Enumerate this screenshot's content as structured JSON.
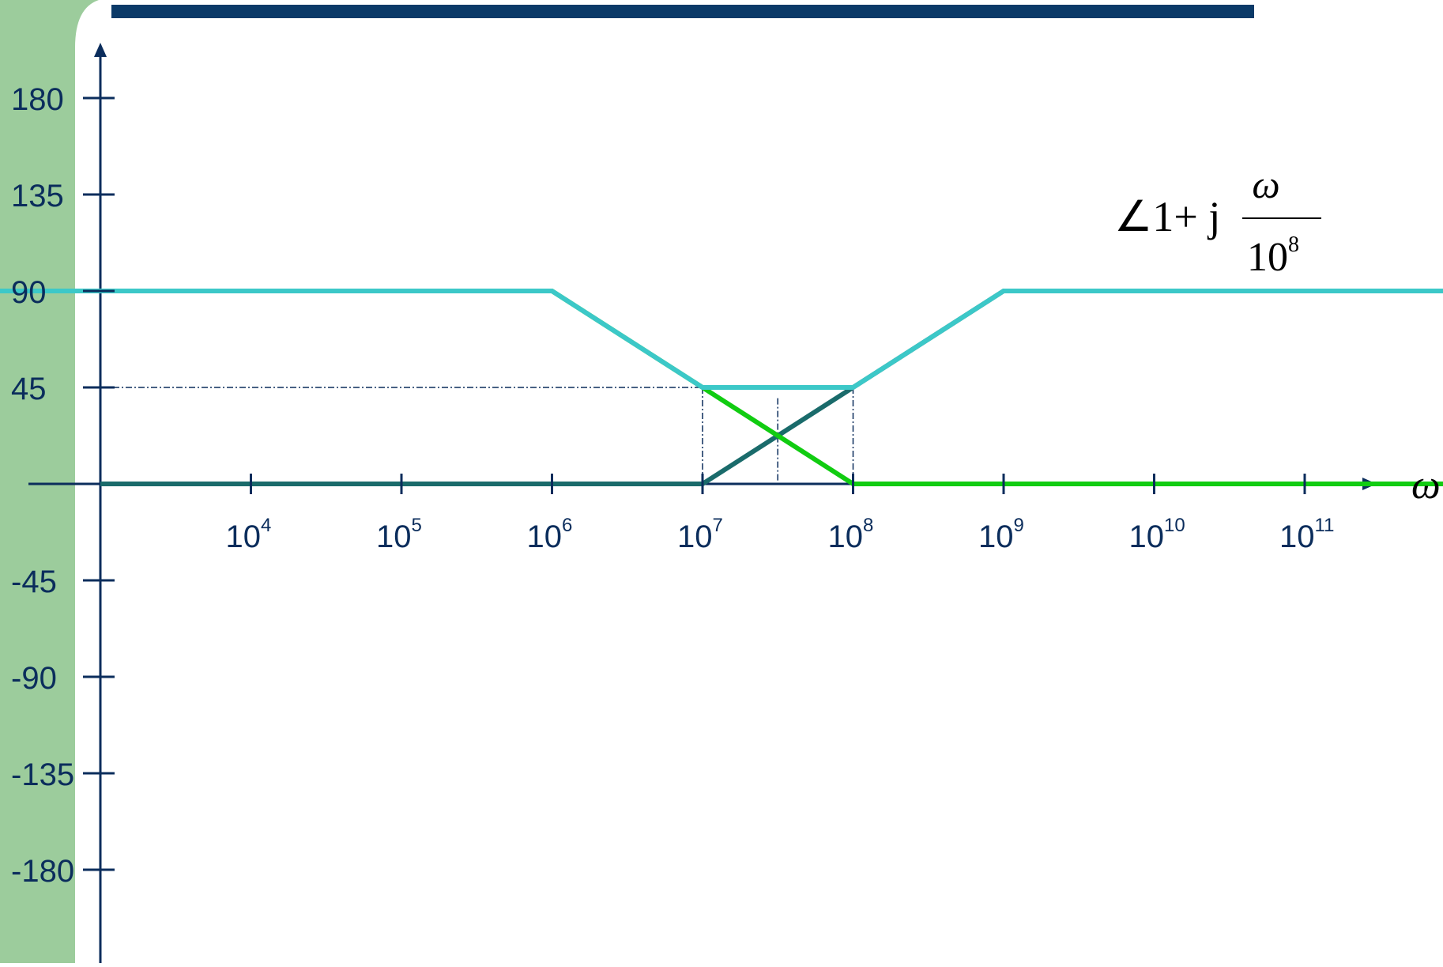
{
  "chart_data": {
    "type": "line",
    "title": "",
    "xlabel": "ω",
    "ylabel": "",
    "x_scale": "log",
    "xlim": [
      1000,
      10000000000000
    ],
    "ylim": [
      -180,
      180
    ],
    "x_ticks": [
      {
        "value": 10000,
        "base": "10",
        "exp": "4"
      },
      {
        "value": 100000,
        "base": "10",
        "exp": "5"
      },
      {
        "value": 1000000,
        "base": "10",
        "exp": "6"
      },
      {
        "value": 10000000,
        "base": "10",
        "exp": "7"
      },
      {
        "value": 100000000,
        "base": "10",
        "exp": "8"
      },
      {
        "value": 1000000000,
        "base": "10",
        "exp": "9"
      },
      {
        "value": 10000000000,
        "base": "10",
        "exp": "10"
      },
      {
        "value": 100000000000,
        "base": "10",
        "exp": "11"
      }
    ],
    "y_ticks": [
      {
        "value": 180,
        "label": "180"
      },
      {
        "value": 135,
        "label": "135"
      },
      {
        "value": 90,
        "label": "90"
      },
      {
        "value": 45,
        "label": "45"
      },
      {
        "value": -45,
        "label": "-45"
      },
      {
        "value": -90,
        "label": "-90"
      },
      {
        "value": -135,
        "label": "-135"
      },
      {
        "value": -180,
        "label": "-180"
      }
    ],
    "annotation": {
      "prefix": "∠1+ j",
      "numerator": "ω",
      "denominator_base": "10",
      "denominator_exp": "8"
    },
    "series": [
      {
        "color": "#1a6b6b",
        "points": [
          [
            1000,
            0
          ],
          [
            10000000,
            0
          ],
          [
            100000000,
            45
          ],
          [
            1000000000,
            90
          ],
          [
            10000000000000,
            90
          ]
        ]
      },
      {
        "color": "#11cc11",
        "points": [
          [
            1000,
            90
          ],
          [
            1000000,
            90
          ],
          [
            10000000,
            45
          ],
          [
            100000000,
            0
          ],
          [
            1000000000000,
            0
          ]
        ]
      },
      {
        "color": "#3cc8c8",
        "points": [
          [
            100,
            90
          ],
          [
            1000000,
            90
          ],
          [
            10000000,
            45
          ],
          [
            100000000,
            45
          ],
          [
            1000000000,
            90
          ],
          [
            30000000000000,
            90
          ]
        ]
      }
    ],
    "guides": [
      {
        "points": [
          [
            1000,
            45
          ],
          [
            10000000,
            45
          ]
        ]
      },
      {
        "points": [
          [
            10000000,
            45
          ],
          [
            10000000,
            0
          ]
        ]
      },
      {
        "points": [
          [
            100000000,
            45
          ],
          [
            100000000,
            0
          ]
        ]
      },
      {
        "points": [
          [
            31622776.6,
            40
          ],
          [
            31622776.6,
            0
          ]
        ]
      }
    ]
  },
  "colors": {
    "header_bar": "#0b3a68",
    "sidebar": "#9ccc9c",
    "axis": "#0b2d5c"
  }
}
